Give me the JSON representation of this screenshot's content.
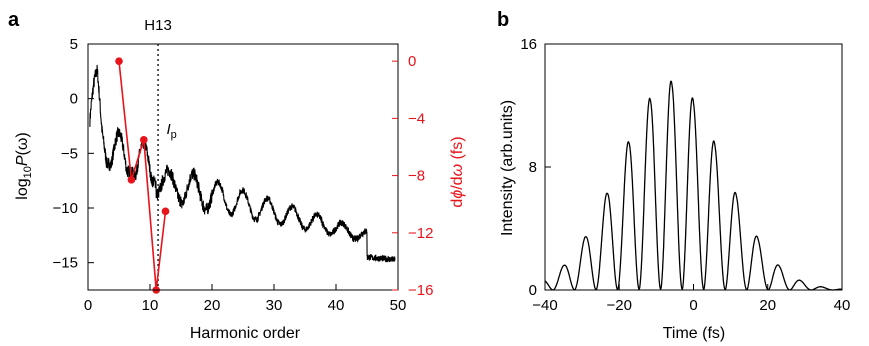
{
  "chart_data": [
    {
      "panel": "a",
      "type": "line",
      "xlabel": "Harmonic order",
      "ylabel_base": "log",
      "ylabel_sub": "10",
      "ylabel_func": "P",
      "ylabel_arg": "(ω)",
      "y2label_pre": "d",
      "y2label_phi": "ϕ",
      "y2label_mid": "/d",
      "y2label_omega": "ω",
      "y2label_unit": " (fs)",
      "xlim": [
        0,
        50
      ],
      "ylim": [
        -17.5,
        5
      ],
      "y2lim": [
        -16,
        1.2
      ],
      "xticks": [
        "0",
        "10",
        "20",
        "30",
        "40",
        "50"
      ],
      "yticks": [
        "5",
        "0",
        "−5",
        "−10",
        "−15"
      ],
      "y2ticks": [
        "0",
        "−4",
        "−8",
        "−12",
        "−16"
      ],
      "annotation_h13": "H13",
      "annotation_ip_main": "I",
      "annotation_ip_sub": "p",
      "h13_x": 11.3,
      "ip_marker": {
        "x": 12.5,
        "y": -2.5
      },
      "colors": {
        "spectrum": "#000000",
        "phase": "#e8141c"
      },
      "phase_series": {
        "x": [
          5,
          7,
          9,
          11,
          12.5
        ],
        "y": [
          0,
          -8.3,
          -5.5,
          -16,
          -10.5
        ]
      }
    },
    {
      "panel": "b",
      "type": "line",
      "xlabel": "Time (fs)",
      "ylabel": "Intensity (arb.units)",
      "xlim": [
        -40,
        40
      ],
      "ylim": [
        0,
        16
      ],
      "xticks": [
        "−40",
        "−20",
        "0",
        "20",
        "40"
      ],
      "yticks": [
        "0",
        "8",
        "16"
      ],
      "envelope_peak": 13.5,
      "envelope_center": -6,
      "period_fs": 5.8,
      "colors": {
        "pulse": "#000000"
      }
    }
  ]
}
